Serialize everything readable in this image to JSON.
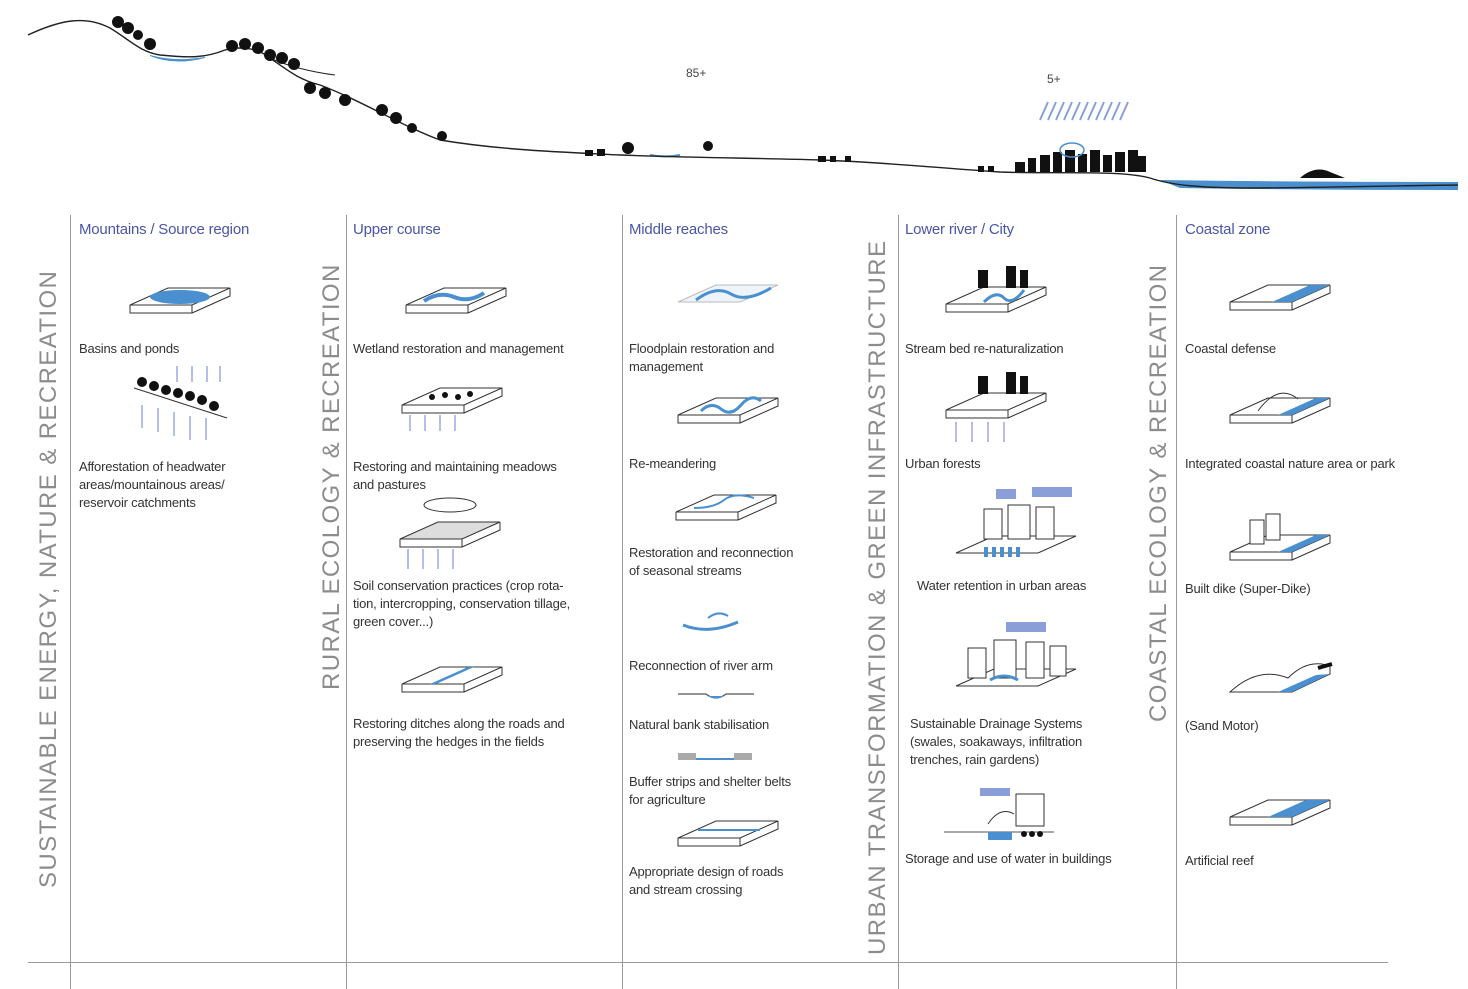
{
  "profile": {
    "num_a": "85+",
    "num_b": "5+"
  },
  "themes": {
    "left": "SUSTAINABLE ENERGY, NATURE & RECREATION",
    "rural": "RURAL ECOLOGY & RECREATION",
    "urban": "URBAN TRANSFORMATION & GREEN INFRASTRUCTURE",
    "coastal": "COASTAL ECOLOGY & RECREATION"
  },
  "columns": [
    {
      "heading": "Mountains / Source region",
      "items": [
        "Basins and ponds",
        "Afforestation of headwater\nareas/mountainous areas/\nreservoir catchments"
      ]
    },
    {
      "heading": "Upper course",
      "items": [
        "Wetland restoration and management",
        "Restoring and maintaining meadows\nand pastures",
        "Soil conservation practices (crop rota-\ntion, intercropping, conservation tillage,\ngreen cover...)",
        "Restoring ditches along the roads and\npreserving the hedges in the fields"
      ]
    },
    {
      "heading": "Middle reaches",
      "items": [
        "Floodplain restoration and\nmanagement",
        "Re-meandering",
        "Restoration and reconnection\nof seasonal streams",
        "Reconnection of river arm",
        "Natural bank stabilisation",
        "Buffer strips and shelter belts\nfor agriculture",
        "Appropriate design of roads\nand stream crossing"
      ]
    },
    {
      "heading": "Lower river / City",
      "items": [
        "Stream bed re-naturalization",
        "Urban forests",
        "Water retention in urban areas",
        "Sustainable Drainage Systems\n(swales, soakaways, infiltration\ntrenches, rain gardens)",
        "Storage and use of water in buildings"
      ]
    },
    {
      "heading": "Coastal zone",
      "items": [
        "Coastal defense",
        "Integrated coastal nature area or park",
        "Built dike (Super-Dike)",
        "(Sand Motor)",
        "Artificial reef"
      ]
    }
  ],
  "colors": {
    "water": "#4a90d0",
    "heading": "#4a55a8",
    "theme": "#8c8c8c"
  }
}
